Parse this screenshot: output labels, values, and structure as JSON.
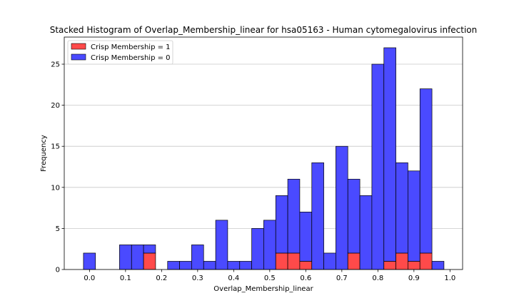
{
  "chart_data": {
    "type": "bar",
    "stacked": true,
    "title": "Stacked Histogram of Overlap_Membership_linear for hsa05163 - Human cytomegalovirus infection",
    "xlabel": "Overlap_Membership_linear",
    "ylabel": "Frequency",
    "xlim": [
      -0.07,
      1.035
    ],
    "ylim": [
      0,
      28.3
    ],
    "xticks": [
      "0.0",
      "0.1",
      "0.2",
      "0.3",
      "0.4",
      "0.5",
      "0.6",
      "0.7",
      "0.8",
      "0.9",
      "1.0"
    ],
    "yticks": [
      "0",
      "5",
      "10",
      "15",
      "20",
      "25"
    ],
    "grid": "horizontal",
    "legend_position": "top-left",
    "bin_width": 0.0333,
    "bin_starts": [
      -0.0167,
      0.0167,
      0.05,
      0.0833,
      0.1167,
      0.15,
      0.1833,
      0.2167,
      0.25,
      0.2833,
      0.3167,
      0.35,
      0.3833,
      0.4167,
      0.45,
      0.4833,
      0.5167,
      0.55,
      0.5833,
      0.6167,
      0.65,
      0.6833,
      0.7167,
      0.75,
      0.7833,
      0.8167,
      0.85,
      0.8833,
      0.9167,
      0.95
    ],
    "series": [
      {
        "name": "Crisp Membership = 1",
        "color": "#ff4a4a",
        "values": [
          0,
          0,
          0,
          0,
          0,
          2,
          0,
          0,
          0,
          0,
          0,
          0,
          0,
          0,
          0,
          0,
          2,
          2,
          1,
          0,
          0,
          0,
          2,
          0,
          0,
          1,
          2,
          1,
          2,
          0
        ]
      },
      {
        "name": "Crisp Membership = 0",
        "color": "#4a4aff",
        "values": [
          2,
          0,
          0,
          3,
          3,
          1,
          0,
          1,
          1,
          3,
          1,
          6,
          1,
          1,
          5,
          6,
          7,
          9,
          6,
          13,
          2,
          15,
          9,
          9,
          25,
          26,
          11,
          11,
          20,
          1
        ]
      }
    ]
  }
}
